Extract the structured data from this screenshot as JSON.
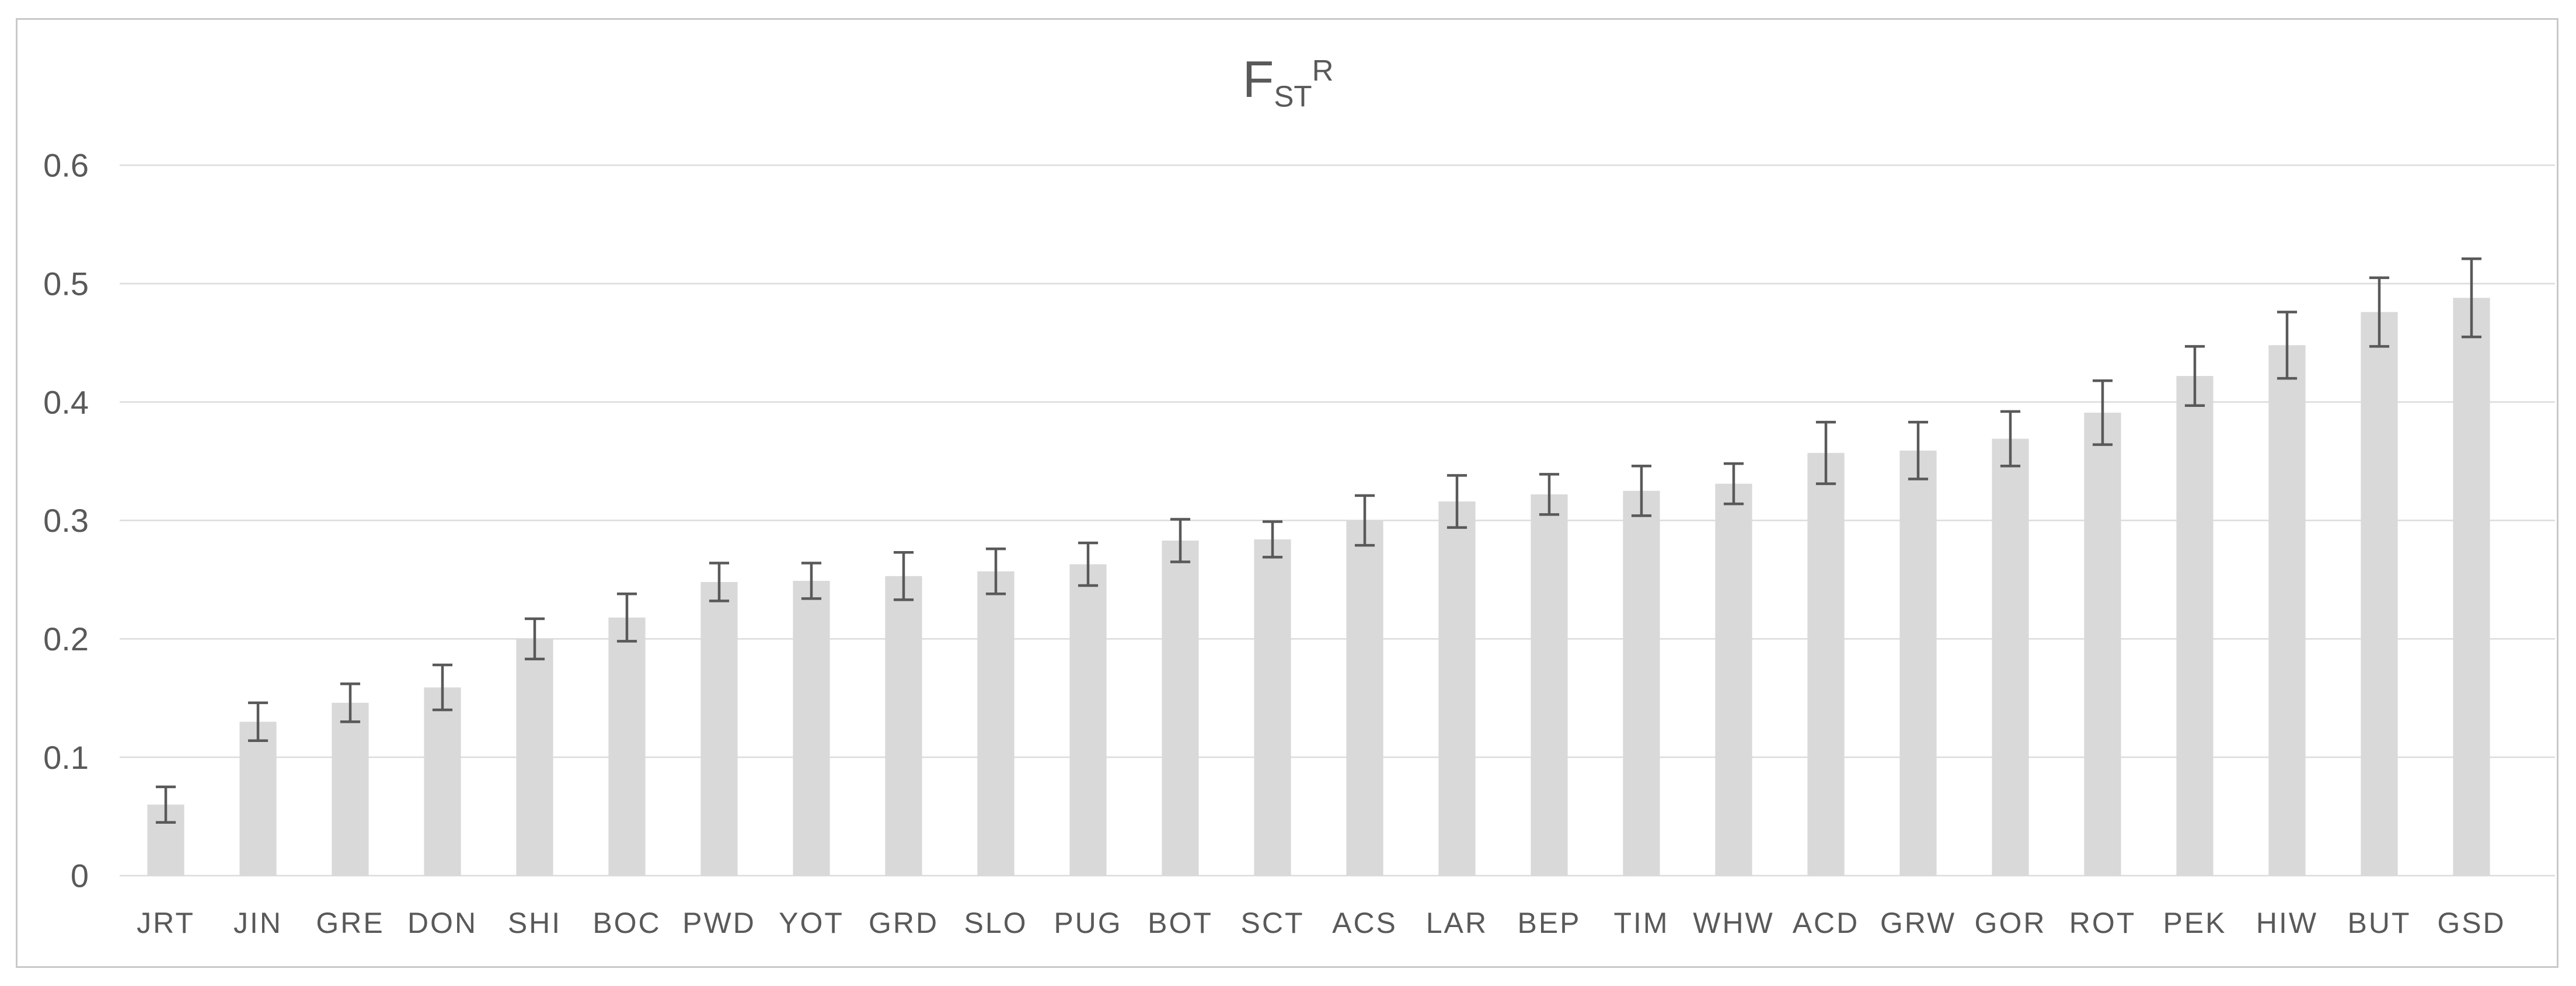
{
  "chart_data": {
    "type": "bar",
    "title": "FST^R",
    "title_parts": {
      "base": "F",
      "sub": "ST",
      "sup": "R"
    },
    "categories": [
      "JRT",
      "JIN",
      "GRE",
      "DON",
      "SHI",
      "BOC",
      "PWD",
      "YOT",
      "GRD",
      "SLO",
      "PUG",
      "BOT",
      "SCT",
      "ACS",
      "LAR",
      "BEP",
      "TIM",
      "WHW",
      "ACD",
      "GRW",
      "GOR",
      "ROT",
      "PEK",
      "HIW",
      "BUT",
      "GSD"
    ],
    "values": [
      0.06,
      0.13,
      0.146,
      0.159,
      0.2,
      0.218,
      0.248,
      0.249,
      0.253,
      0.257,
      0.263,
      0.283,
      0.284,
      0.3,
      0.316,
      0.322,
      0.325,
      0.331,
      0.357,
      0.359,
      0.369,
      0.391,
      0.422,
      0.448,
      0.476,
      0.488
    ],
    "error_bars": [
      0.015,
      0.016,
      0.016,
      0.019,
      0.017,
      0.02,
      0.016,
      0.015,
      0.02,
      0.019,
      0.018,
      0.018,
      0.015,
      0.021,
      0.022,
      0.017,
      0.021,
      0.017,
      0.026,
      0.024,
      0.023,
      0.027,
      0.025,
      0.028,
      0.029,
      0.033
    ],
    "xlabel": "",
    "ylabel": "",
    "ylim": [
      0,
      0.6
    ],
    "ytick_labels": [
      "0",
      "0.1",
      "0.2",
      "0.3",
      "0.4",
      "0.5",
      "0.6"
    ],
    "yticks": [
      0,
      0.1,
      0.2,
      0.3,
      0.4,
      0.5,
      0.6
    ],
    "grid": true,
    "legend": "none",
    "colors": {
      "bar_fill": "#d9d9d9",
      "error_bar": "#595959",
      "gridline": "#dcdcdc",
      "axis_text": "#595959",
      "frame_border": "#c9c9c9",
      "background": "#ffffff"
    }
  }
}
